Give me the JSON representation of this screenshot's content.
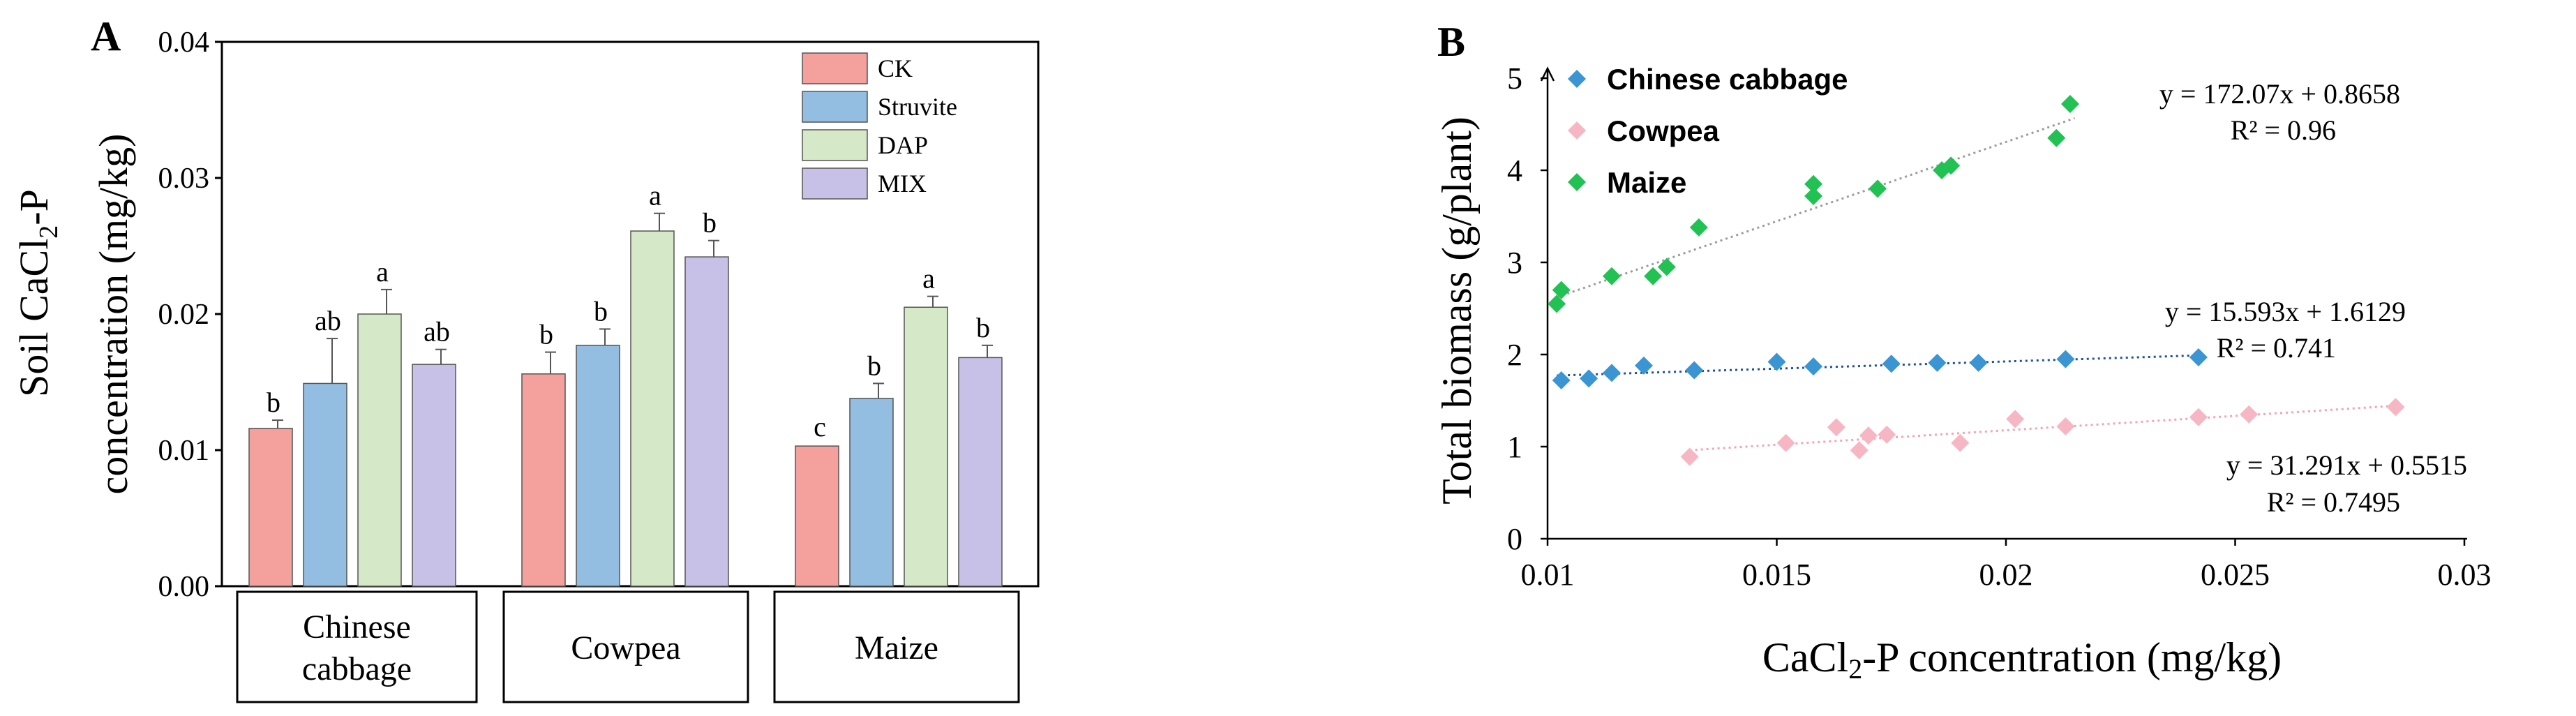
{
  "colors": {
    "CK": "#f4a09c",
    "Struvite": "#94bde2",
    "DAP": "#d5e8c8",
    "MIX": "#c7c1e8",
    "chinese_cabbage": "#3a95d2",
    "cowpea": "#f7b6c4",
    "maize": "#22c154"
  },
  "chart_data": [
    {
      "panel": "A",
      "type": "bar",
      "ylabel_line1": "Soil CaCl",
      "ylabel_sub": "2",
      "ylabel_suffix": "-P",
      "ylabel_line2": "concentration (mg/kg)",
      "ylim": [
        0,
        0.04
      ],
      "yticks": [
        "0.00",
        "0.01",
        "0.02",
        "0.03",
        "0.04"
      ],
      "groups": [
        {
          "label_lines": [
            "Chinese",
            "cabbage"
          ]
        },
        {
          "label_lines": [
            "Cowpea"
          ]
        },
        {
          "label_lines": [
            "Maize"
          ]
        }
      ],
      "legend_position": "top-right",
      "series": [
        {
          "name": "CK",
          "values": [
            0.0116,
            0.0156,
            0.0103
          ],
          "errors": [
            0.0006,
            0.0016,
            0.0
          ],
          "letters": [
            "b",
            "b",
            "c"
          ]
        },
        {
          "name": "Struvite",
          "values": [
            0.0149,
            0.0177,
            0.0138
          ],
          "errors": [
            0.0033,
            0.0012,
            0.0011
          ],
          "letters": [
            "ab",
            "b",
            "b"
          ]
        },
        {
          "name": "DAP",
          "values": [
            0.02,
            0.0261,
            0.0205
          ],
          "errors": [
            0.0018,
            0.0013,
            0.0008
          ],
          "letters": [
            "a",
            "a",
            "a"
          ]
        },
        {
          "name": "MIX",
          "values": [
            0.0163,
            0.0242,
            0.0168
          ],
          "errors": [
            0.0011,
            0.0012,
            0.0009
          ],
          "letters": [
            "ab",
            "b",
            "b"
          ]
        }
      ]
    },
    {
      "panel": "B",
      "type": "scatter",
      "ylabel": "Total biomass (g/plant)",
      "xlabel_prefix": "CaCl",
      "xlabel_sub": "2",
      "xlabel_suffix": "-P concentration (mg/kg)",
      "xlim": [
        0.01,
        0.03
      ],
      "ylim": [
        0,
        5
      ],
      "xticks": [
        "0.01",
        "0.015",
        "0.02",
        "0.025",
        "0.03"
      ],
      "yticks": [
        "0",
        "1",
        "2",
        "3",
        "4",
        "5"
      ],
      "legend_position": "top-left",
      "series": [
        {
          "name": "Chinese cabbage",
          "equation": "y = 15.593x + 1.6129",
          "r2": "R² = 0.741",
          "slope": 15.593,
          "intercept": 1.6129,
          "fit_range": [
            0.0102,
            0.0243
          ],
          "points": [
            [
              0.0103,
              1.72
            ],
            [
              0.0109,
              1.74
            ],
            [
              0.0114,
              1.8
            ],
            [
              0.0121,
              1.88
            ],
            [
              0.0132,
              1.83
            ],
            [
              0.015,
              1.92
            ],
            [
              0.0158,
              1.87
            ],
            [
              0.0175,
              1.9
            ],
            [
              0.0185,
              1.91
            ],
            [
              0.0194,
              1.91
            ],
            [
              0.0213,
              1.95
            ],
            [
              0.0242,
              1.97
            ]
          ]
        },
        {
          "name": "Cowpea",
          "equation": "y = 31.291x + 0.5515",
          "r2": "R² = 0.7495",
          "slope": 31.291,
          "intercept": 0.5515,
          "fit_range": [
            0.0131,
            0.0286
          ],
          "points": [
            [
              0.0131,
              0.89
            ],
            [
              0.0152,
              1.04
            ],
            [
              0.0163,
              1.21
            ],
            [
              0.0168,
              0.96
            ],
            [
              0.017,
              1.12
            ],
            [
              0.0174,
              1.13
            ],
            [
              0.019,
              1.04
            ],
            [
              0.0202,
              1.3
            ],
            [
              0.0213,
              1.22
            ],
            [
              0.0242,
              1.32
            ],
            [
              0.0253,
              1.35
            ],
            [
              0.0285,
              1.43
            ]
          ]
        },
        {
          "name": "Maize",
          "equation": "y = 172.07x + 0.8658",
          "r2": "R² = 0.96",
          "slope": 172.07,
          "intercept": 0.8658,
          "fit_range": [
            0.0102,
            0.0215
          ],
          "points": [
            [
              0.0102,
              2.55
            ],
            [
              0.0103,
              2.7
            ],
            [
              0.0114,
              2.85
            ],
            [
              0.0123,
              2.85
            ],
            [
              0.0126,
              2.95
            ],
            [
              0.0133,
              3.38
            ],
            [
              0.0158,
              3.72
            ],
            [
              0.0158,
              3.85
            ],
            [
              0.0172,
              3.8
            ],
            [
              0.0186,
              4.0
            ],
            [
              0.0188,
              4.05
            ],
            [
              0.0211,
              4.35
            ],
            [
              0.0214,
              4.72
            ]
          ]
        }
      ]
    }
  ]
}
